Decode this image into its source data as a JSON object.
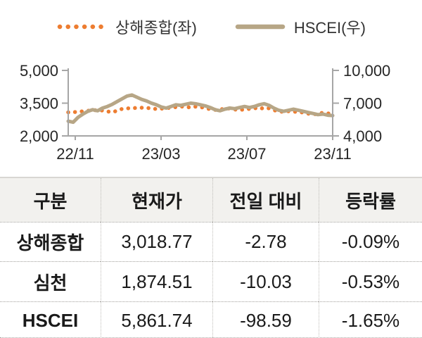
{
  "legend": {
    "items": [
      {
        "label": "상해종합(좌)",
        "color": "#ED7D31",
        "style": "dotted"
      },
      {
        "label": "HSCEI(우)",
        "color": "#B7A686",
        "style": "solid"
      }
    ]
  },
  "chart_data": {
    "type": "line",
    "title": "",
    "xlabel": "",
    "ylabel_left": "",
    "ylabel_right": "",
    "grid": false,
    "legend_position": "top",
    "x_tick_labels": [
      "22/11",
      "23/03",
      "23/07",
      "23/11"
    ],
    "axis_left": {
      "tick_labels": [
        "5,000",
        "3,500",
        "2,000"
      ],
      "range": [
        2000,
        5000
      ]
    },
    "axis_right": {
      "tick_labels": [
        "10,000",
        "7,000",
        "4,000"
      ],
      "range": [
        4000,
        10000
      ]
    },
    "series": [
      {
        "name": "상해종합(좌)",
        "axis": "left",
        "style": "dotted",
        "color": "#ED7D31",
        "values": [
          3080,
          3090,
          3100,
          3130,
          3150,
          3170,
          3180,
          3160,
          3120,
          3090,
          3150,
          3240,
          3260,
          3270,
          3280,
          3290,
          3280,
          3260,
          3230,
          3250,
          3270,
          3290,
          3320,
          3350,
          3330,
          3300,
          3340,
          3320,
          3280,
          3220,
          3190,
          3220,
          3240,
          3260,
          3210,
          3190,
          3210,
          3240,
          3280,
          3230,
          3290,
          3260,
          3180,
          3120,
          3100,
          3130,
          3110,
          3090,
          3070,
          3020,
          2980,
          3020,
          3060,
          3030,
          3019
        ]
      },
      {
        "name": "HSCEI(우)",
        "axis": "right",
        "style": "solid",
        "color": "#B7A686",
        "values": [
          5350,
          5250,
          5700,
          6000,
          6250,
          6400,
          6300,
          6550,
          6700,
          6900,
          7150,
          7400,
          7650,
          7750,
          7550,
          7350,
          7200,
          7000,
          6850,
          6650,
          6550,
          6700,
          6850,
          6800,
          6900,
          7000,
          6950,
          6850,
          6750,
          6600,
          6400,
          6300,
          6450,
          6550,
          6500,
          6600,
          6700,
          6600,
          6700,
          6850,
          6950,
          6800,
          6550,
          6350,
          6250,
          6350,
          6450,
          6350,
          6250,
          6150,
          6050,
          5950,
          6000,
          5900,
          5862
        ]
      }
    ],
    "axis_color": "#a6a6a6",
    "label_color": "#262626"
  },
  "table": {
    "columns": [
      "구분",
      "현재가",
      "전일 대비",
      "등락률"
    ],
    "rows": [
      {
        "name": "상해종합",
        "price": "3,018.77",
        "change": "-2.78",
        "pct": "-0.09%"
      },
      {
        "name": "심천",
        "price": "1,874.51",
        "change": "-10.03",
        "pct": "-0.53%"
      },
      {
        "name": "HSCEI",
        "price": "5,861.74",
        "change": "-98.59",
        "pct": "-1.65%"
      }
    ]
  }
}
